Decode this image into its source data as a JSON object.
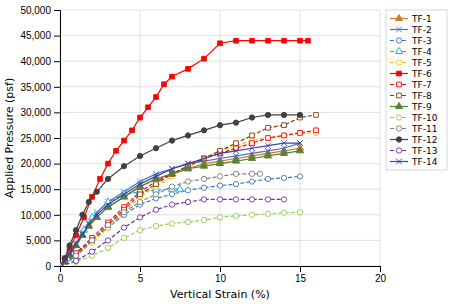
{
  "chart_data": {
    "type": "line",
    "xlabel": "Vertical Strain (%)",
    "ylabel": "Applied Pressure (psf)",
    "xlim": [
      0,
      20
    ],
    "ylim": [
      0,
      50000
    ],
    "xticks": [
      0,
      5,
      10,
      15,
      20
    ],
    "yticks": [
      0,
      {
        "value": 5000,
        "label": "5,000"
      },
      {
        "value": 10000,
        "label": "10,000"
      },
      {
        "value": 15000,
        "label": "15,000"
      },
      {
        "value": 20000,
        "label": "20,000"
      },
      {
        "value": 25000,
        "label": "25,000"
      },
      {
        "value": 30000,
        "label": "30,000"
      },
      {
        "value": 35000,
        "label": "35,000"
      },
      {
        "value": 40000,
        "label": "40,000"
      },
      {
        "value": 45000,
        "label": "45,000"
      },
      {
        "value": 50000,
        "label": "50,000"
      }
    ],
    "grid": true,
    "legend": "right",
    "series": [
      {
        "name": "TF-1",
        "color": "#D4782A",
        "line_style": "solid",
        "marker": "triangle",
        "x": [
          0,
          0.3,
          0.6,
          1.0,
          1.4,
          1.8,
          2.3,
          3.0,
          4.0,
          5.0,
          6.0,
          7.0,
          8.0,
          9.0,
          10.0,
          11.0,
          12.0,
          13.0,
          14.0,
          15.0
        ],
        "values": [
          0,
          800,
          2200,
          4000,
          6000,
          7800,
          9500,
          11500,
          13500,
          15500,
          17000,
          18000,
          19000,
          20000,
          20500,
          21000,
          21500,
          22000,
          22500,
          23000
        ]
      },
      {
        "name": "TF-2",
        "color": "#4472C4",
        "line_style": "solid",
        "marker": "x",
        "x": [
          0,
          0.3,
          0.6,
          1.0,
          1.4,
          1.8,
          2.3,
          3.0,
          4.0,
          5.0,
          6.0,
          7.0,
          8.0,
          9.0,
          10.0,
          11.0,
          12.0,
          13.0,
          14.0,
          15.0
        ],
        "values": [
          0,
          900,
          2500,
          4500,
          6500,
          8500,
          10500,
          12500,
          14500,
          16500,
          18000,
          19000,
          20000,
          20500,
          21000,
          21500,
          22000,
          22500,
          23000,
          24000
        ]
      },
      {
        "name": "TF-3",
        "color": "#4472C4",
        "line_style": "dashed",
        "marker": "circle-open",
        "x": [
          0,
          1.0,
          2.0,
          3.0,
          4.0,
          5.0,
          6.0,
          7.0,
          8.0,
          9.0,
          10.0,
          11.0,
          12.0,
          13.0,
          14.0,
          15.0
        ],
        "values": [
          0,
          2500,
          5000,
          7500,
          10000,
          12000,
          13200,
          14000,
          14800,
          15300,
          15700,
          16000,
          16500,
          17000,
          17200,
          17500
        ]
      },
      {
        "name": "TF-4",
        "color": "#00B0F0",
        "line_style": "dashed",
        "marker": "triangle-open",
        "x": [
          0,
          0.5,
          1.0,
          1.5,
          2.0,
          3.0,
          4.0,
          5.0,
          6.0,
          7.0,
          7.5
        ],
        "values": [
          0,
          1500,
          4000,
          7000,
          9500,
          12500,
          14000,
          14500,
          14800,
          15000,
          15000
        ]
      },
      {
        "name": "TF-5",
        "color": "#FFC000",
        "line_style": "dashed",
        "marker": "circle-open",
        "x": [
          0,
          1.0,
          2.0,
          3.0,
          4.0,
          5.0,
          6.0,
          7.0,
          8.0,
          9.0,
          10.0,
          11.0,
          12.0,
          13.0,
          14.0,
          15.0,
          16.0
        ],
        "values": [
          0,
          2000,
          4500,
          7500,
          10500,
          13500,
          15500,
          17500,
          19500,
          21000,
          22500,
          23500,
          24500,
          25000,
          25500,
          26000,
          26000
        ]
      },
      {
        "name": "TF-6",
        "color": "#FF0000",
        "line_style": "solid",
        "marker": "square",
        "x": [
          0,
          0.3,
          0.6,
          1.0,
          1.5,
          2.0,
          2.5,
          3.0,
          3.5,
          4.0,
          4.5,
          5.0,
          5.5,
          6.0,
          6.5,
          7.0,
          8.0,
          9.0,
          10.0,
          11.0,
          12.0,
          13.0,
          14.0,
          15.0,
          15.5
        ],
        "values": [
          0,
          1500,
          3500,
          6000,
          9500,
          13500,
          17000,
          20000,
          22500,
          24500,
          26500,
          29000,
          31000,
          33000,
          35500,
          37000,
          38500,
          40500,
          43500,
          44000,
          44000,
          44000,
          44000,
          44000,
          44000
        ]
      },
      {
        "name": "TF-7",
        "color": "#FF0000",
        "line_style": "dashed",
        "marker": "square-open",
        "x": [
          0,
          1.0,
          2.0,
          3.0,
          4.0,
          5.0,
          6.0,
          7.0,
          8.0,
          9.0,
          10.0,
          11.0,
          12.0,
          13.0,
          14.0,
          15.0,
          16.0
        ],
        "values": [
          0,
          2500,
          5500,
          8500,
          11500,
          14500,
          16500,
          18000,
          19500,
          21000,
          22000,
          23000,
          24000,
          25000,
          25500,
          26000,
          26500
        ]
      },
      {
        "name": "TF-8",
        "color": "#843C0C",
        "line_style": "dashed",
        "marker": "square-open",
        "x": [
          0,
          1.0,
          2.0,
          3.0,
          4.0,
          5.0,
          6.0,
          7.0,
          8.0,
          9.0,
          10.0,
          11.0,
          12.0,
          13.0,
          14.0,
          15.0,
          16.0
        ],
        "values": [
          0,
          2000,
          5000,
          8000,
          11000,
          14000,
          16000,
          18000,
          19500,
          21000,
          22500,
          24000,
          25500,
          27000,
          27500,
          29000,
          29500
        ]
      },
      {
        "name": "TF-9",
        "color": "#548235",
        "line_style": "solid",
        "marker": "triangle",
        "x": [
          0,
          0.3,
          0.6,
          1.0,
          1.4,
          1.8,
          2.3,
          3.0,
          4.0,
          5.0,
          6.0,
          7.0,
          8.0,
          9.0,
          10.0,
          11.0,
          12.0,
          13.0,
          14.0,
          15.0
        ],
        "values": [
          0,
          800,
          2200,
          4000,
          6000,
          7800,
          9500,
          11500,
          13500,
          15500,
          17000,
          18000,
          19000,
          19500,
          20000,
          20500,
          21000,
          21500,
          22000,
          22500
        ]
      },
      {
        "name": "TF-10",
        "color": "#92D050",
        "line_style": "dashed",
        "marker": "circle-open",
        "x": [
          0,
          1.0,
          2.0,
          3.0,
          4.0,
          5.0,
          6.0,
          7.0,
          8.0,
          9.0,
          10.0,
          11.0,
          12.0,
          13.0,
          14.0,
          15.0
        ],
        "values": [
          0,
          800,
          2000,
          3500,
          5500,
          7000,
          7800,
          8300,
          8600,
          9000,
          9500,
          9800,
          10000,
          10200,
          10400,
          10500
        ]
      },
      {
        "name": "TF-11",
        "color": "#808080",
        "line_style": "dashed",
        "marker": "circle-open",
        "x": [
          0,
          1.0,
          2.0,
          3.0,
          4.0,
          5.0,
          6.0,
          7.0,
          8.0,
          9.0,
          10.0,
          11.0,
          12.0,
          12.5
        ],
        "values": [
          0,
          2000,
          5000,
          8000,
          10500,
          12500,
          14000,
          15500,
          16500,
          17000,
          17500,
          18000,
          18000,
          18000
        ]
      },
      {
        "name": "TF-12",
        "color": "#404040",
        "line_style": "solid",
        "marker": "circle",
        "x": [
          0,
          0.3,
          0.6,
          1.0,
          1.4,
          1.8,
          2.3,
          3.0,
          4.0,
          5.0,
          6.0,
          7.0,
          8.0,
          9.0,
          10.0,
          11.0,
          12.0,
          13.0,
          14.0,
          15.0
        ],
        "values": [
          0,
          1500,
          4000,
          7000,
          10000,
          12500,
          14500,
          17000,
          19500,
          21500,
          23000,
          24500,
          25500,
          26500,
          27500,
          28000,
          29000,
          29500,
          29500,
          29500
        ]
      },
      {
        "name": "TF-13",
        "color": "#7030A0",
        "line_style": "dashed",
        "marker": "circle-open",
        "x": [
          0,
          1.0,
          2.0,
          3.0,
          4.0,
          5.0,
          6.0,
          7.0,
          8.0,
          9.0,
          10.0,
          11.0,
          12.0,
          13.0,
          14.0
        ],
        "values": [
          0,
          1000,
          2800,
          5000,
          7500,
          9500,
          11000,
          12000,
          12500,
          13000,
          13000,
          13000,
          13000,
          13000,
          13000
        ]
      },
      {
        "name": "TF-14",
        "color": "#4040A0",
        "line_style": "solid",
        "marker": "x",
        "x": [
          0,
          0.3,
          0.6,
          1.0,
          1.4,
          1.8,
          2.3,
          3.0,
          4.0,
          5.0,
          6.0,
          7.0,
          8.0,
          9.0,
          10.0,
          11.0,
          12.0,
          13.0,
          14.0,
          15.0
        ],
        "values": [
          0,
          900,
          2400,
          4200,
          6200,
          8200,
          10000,
          12000,
          14000,
          16000,
          17500,
          19000,
          20000,
          21000,
          22000,
          22500,
          23000,
          23500,
          24000,
          24000
        ]
      }
    ]
  }
}
